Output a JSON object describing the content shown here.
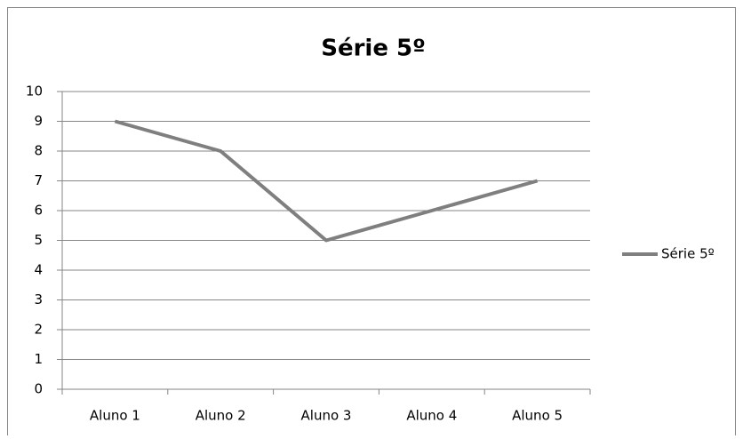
{
  "chart_data": {
    "type": "line",
    "title": "Série 5º",
    "categories": [
      "Aluno 1",
      "Aluno 2",
      "Aluno 3",
      "Aluno 4",
      "Aluno 5"
    ],
    "series": [
      {
        "name": "Série 5º",
        "color": "#7f7f7f",
        "values": [
          9,
          8,
          5,
          6,
          7
        ]
      }
    ],
    "ylim": [
      0,
      10
    ],
    "yticks": [
      0,
      1,
      2,
      3,
      4,
      5,
      6,
      7,
      8,
      9,
      10
    ],
    "grid": true,
    "legend": "right"
  }
}
